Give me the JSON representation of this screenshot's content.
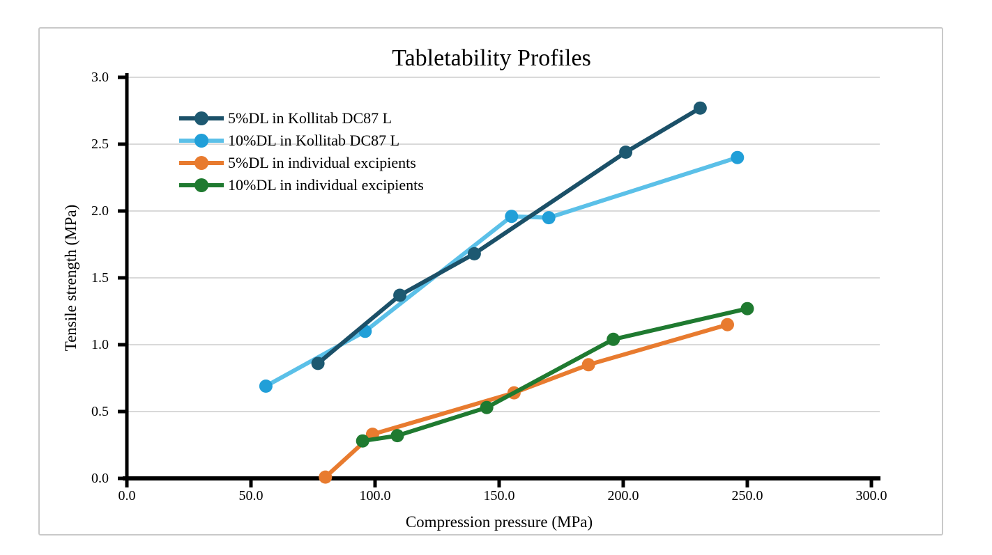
{
  "page": {
    "background_color": "#ffffff",
    "frame_border_color": "#c9c9c9"
  },
  "chart_data": {
    "type": "line",
    "title": "Tabletability Profiles",
    "xlabel": "Compression pressure (MPa)",
    "ylabel": "Tensile strength (MPa)",
    "xlim": [
      0,
      300
    ],
    "ylim": [
      0,
      3
    ],
    "x_tick_values": [
      0,
      50,
      100,
      150,
      200,
      250,
      300
    ],
    "x_tick_labels": [
      "0.0",
      "50.0",
      "100.0",
      "150.0",
      "200.0",
      "250.0",
      "300.0"
    ],
    "y_tick_values": [
      0,
      0.5,
      1,
      1.5,
      2,
      2.5,
      3
    ],
    "y_tick_labels": [
      "0.0",
      "0.5",
      "1.0",
      "1.5",
      "2.0",
      "2.5",
      "3.0"
    ],
    "grid": "horizontal gridlines only",
    "gridline_color": "#d9d9d9",
    "axis_color": "#000000",
    "legend_position": "upper-left inside plot area",
    "series": [
      {
        "name": "5%DL in Kollitab DC87 L",
        "color": "#1b5068",
        "marker_color": "#1d5971",
        "marker": "circle",
        "points": [
          [
            77,
            0.86
          ],
          [
            110,
            1.37
          ],
          [
            140,
            1.68
          ],
          [
            201,
            2.44
          ],
          [
            231,
            2.77
          ]
        ]
      },
      {
        "name": "10%DL in Kollitab DC87 L",
        "color": "#5bc0e8",
        "marker_color": "#219fd8",
        "marker": "circle",
        "points": [
          [
            56,
            0.69
          ],
          [
            96,
            1.1
          ],
          [
            155,
            1.96
          ],
          [
            170,
            1.95
          ],
          [
            246,
            2.4
          ]
        ]
      },
      {
        "name": "5%DL in individual excipients",
        "color": "#e87b2f",
        "marker_color": "#e87b2f",
        "marker": "circle",
        "points": [
          [
            80,
            0.01
          ],
          [
            99,
            0.33
          ],
          [
            156,
            0.64
          ],
          [
            186,
            0.85
          ],
          [
            242,
            1.15
          ]
        ]
      },
      {
        "name": "10%DL in individual excipients",
        "color": "#1f7a30",
        "marker_color": "#1f7a30",
        "marker": "circle",
        "points": [
          [
            95,
            0.28
          ],
          [
            109,
            0.32
          ],
          [
            145,
            0.53
          ],
          [
            196,
            1.04
          ],
          [
            250,
            1.27
          ]
        ]
      }
    ]
  }
}
